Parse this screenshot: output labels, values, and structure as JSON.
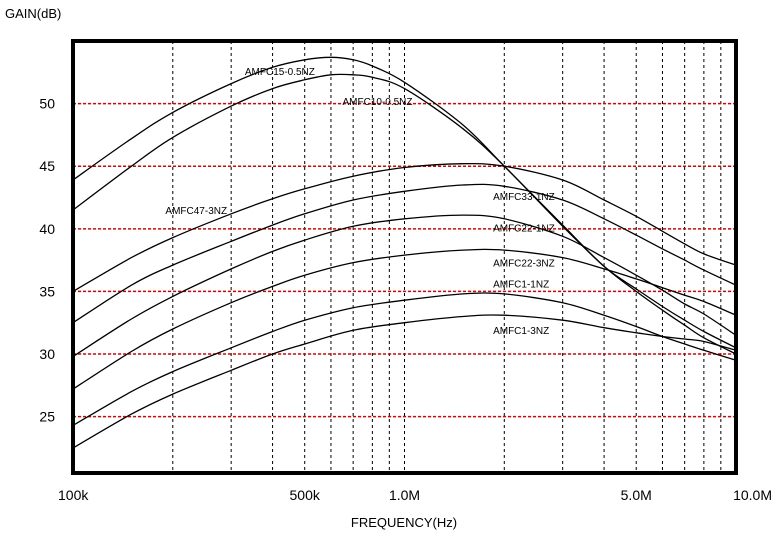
{
  "chart_data": {
    "type": "line",
    "title": "",
    "ylabel": "GAIN(dB)",
    "xlabel": "FREQUENCY(Hz)",
    "x_scale": "log",
    "xlim": [
      100000,
      10000000
    ],
    "ylim": [
      20.5,
      55
    ],
    "grid": "red dashed horizontal, black dashed vertical",
    "x_ticks": [
      {
        "value": 100000,
        "label": "100k"
      },
      {
        "value": 500000,
        "label": "500k"
      },
      {
        "value": 1000000,
        "label": "1.0M"
      },
      {
        "value": 5000000,
        "label": "5.0M"
      },
      {
        "value": 10000000,
        "label": "10.0M"
      }
    ],
    "y_ticks": [
      {
        "value": 25,
        "label": "25"
      },
      {
        "value": 30,
        "label": "30"
      },
      {
        "value": 35,
        "label": "35"
      },
      {
        "value": 40,
        "label": "40"
      },
      {
        "value": 45,
        "label": "45"
      },
      {
        "value": 50,
        "label": "50"
      }
    ],
    "series": [
      {
        "name": "AMFC15-0.5NZ",
        "label_at": [
          330000,
          52.3
        ],
        "points": [
          [
            100000,
            43.9
          ],
          [
            150000,
            47.2
          ],
          [
            200000,
            49.3
          ],
          [
            300000,
            51.6
          ],
          [
            400000,
            52.9
          ],
          [
            500000,
            53.5
          ],
          [
            600000,
            53.7
          ],
          [
            700000,
            53.5
          ],
          [
            800000,
            53
          ],
          [
            1000000,
            51.7
          ],
          [
            1500000,
            48.3
          ],
          [
            2000000,
            45
          ],
          [
            3000000,
            40.3
          ],
          [
            4000000,
            37
          ],
          [
            5000000,
            35.2
          ],
          [
            6000000,
            33.8
          ],
          [
            7000000,
            32.7
          ],
          [
            8000000,
            31.8
          ],
          [
            10000000,
            30.5
          ]
        ]
      },
      {
        "name": "AMFC10-0.5NZ",
        "label_at": [
          650000,
          49.9
        ],
        "points": [
          [
            100000,
            41.5
          ],
          [
            150000,
            45
          ],
          [
            200000,
            47.3
          ],
          [
            300000,
            49.8
          ],
          [
            400000,
            51.2
          ],
          [
            500000,
            51.9
          ],
          [
            600000,
            52.3
          ],
          [
            700000,
            52.3
          ],
          [
            800000,
            52.1
          ],
          [
            1000000,
            51.2
          ],
          [
            1500000,
            48
          ],
          [
            2000000,
            45
          ],
          [
            3000000,
            40.2
          ],
          [
            4000000,
            37
          ],
          [
            5000000,
            35
          ],
          [
            6000000,
            33.5
          ],
          [
            7000000,
            32.3
          ],
          [
            8000000,
            31.3
          ],
          [
            10000000,
            30
          ]
        ]
      },
      {
        "name": "AMFC47-3NZ",
        "label_at": [
          190000,
          41.2
        ],
        "points": [
          [
            100000,
            35
          ],
          [
            150000,
            37.7
          ],
          [
            200000,
            39.3
          ],
          [
            300000,
            41.2
          ],
          [
            400000,
            42.4
          ],
          [
            500000,
            43.2
          ],
          [
            700000,
            44.2
          ],
          [
            1000000,
            44.9
          ],
          [
            1500000,
            45.2
          ],
          [
            2000000,
            45
          ],
          [
            3000000,
            43.9
          ],
          [
            4000000,
            42.3
          ],
          [
            5000000,
            41
          ],
          [
            6000000,
            39.8
          ],
          [
            7000000,
            38.8
          ],
          [
            8000000,
            38
          ],
          [
            10000000,
            37.1
          ]
        ]
      },
      {
        "name": "AMFC33-1NZ",
        "label_at": [
          1850000,
          42.3
        ],
        "points": [
          [
            100000,
            32.5
          ],
          [
            150000,
            35.5
          ],
          [
            200000,
            37.1
          ],
          [
            300000,
            39
          ],
          [
            400000,
            40.3
          ],
          [
            500000,
            41.2
          ],
          [
            700000,
            42.3
          ],
          [
            1000000,
            43
          ],
          [
            1500000,
            43.5
          ],
          [
            2000000,
            43.4
          ],
          [
            3000000,
            42.3
          ],
          [
            4000000,
            40.8
          ],
          [
            5000000,
            39.5
          ],
          [
            6000000,
            38.4
          ],
          [
            7000000,
            37.5
          ],
          [
            8000000,
            36.7
          ],
          [
            10000000,
            35.5
          ]
        ]
      },
      {
        "name": "AMFC22-1NZ",
        "label_at": [
          1850000,
          39.8
        ],
        "points": [
          [
            100000,
            29.8
          ],
          [
            150000,
            32.8
          ],
          [
            200000,
            34.6
          ],
          [
            300000,
            36.8
          ],
          [
            400000,
            38.2
          ],
          [
            500000,
            39.1
          ],
          [
            700000,
            40.2
          ],
          [
            1000000,
            40.8
          ],
          [
            1500000,
            41.1
          ],
          [
            2000000,
            40.8
          ],
          [
            3000000,
            39.4
          ],
          [
            4000000,
            37.7
          ],
          [
            5000000,
            36.3
          ],
          [
            6000000,
            35.1
          ],
          [
            7000000,
            34
          ],
          [
            8000000,
            33.2
          ],
          [
            10000000,
            31.5
          ]
        ]
      },
      {
        "name": "AMFC22-3NZ",
        "label_at": [
          1850000,
          37
        ],
        "points": [
          [
            100000,
            27.2
          ],
          [
            150000,
            30.2
          ],
          [
            200000,
            32
          ],
          [
            300000,
            34.1
          ],
          [
            400000,
            35.4
          ],
          [
            500000,
            36.3
          ],
          [
            700000,
            37.3
          ],
          [
            1000000,
            37.9
          ],
          [
            1500000,
            38.3
          ],
          [
            2000000,
            38.3
          ],
          [
            3000000,
            37.7
          ],
          [
            4000000,
            36.8
          ],
          [
            5000000,
            36
          ],
          [
            6000000,
            35.3
          ],
          [
            7000000,
            34.7
          ],
          [
            8000000,
            34.2
          ],
          [
            10000000,
            33.1
          ]
        ]
      },
      {
        "name": "AMFC1-1NZ",
        "label_at": [
          1850000,
          35.3
        ],
        "points": [
          [
            100000,
            24.3
          ],
          [
            150000,
            27
          ],
          [
            200000,
            28.6
          ],
          [
            300000,
            30.5
          ],
          [
            400000,
            31.8
          ],
          [
            500000,
            32.7
          ],
          [
            700000,
            33.7
          ],
          [
            1000000,
            34.3
          ],
          [
            1500000,
            34.8
          ],
          [
            2000000,
            34.8
          ],
          [
            3000000,
            34.1
          ],
          [
            4000000,
            33.1
          ],
          [
            5000000,
            32.2
          ],
          [
            6000000,
            31.4
          ],
          [
            7000000,
            30.8
          ],
          [
            8000000,
            30.3
          ],
          [
            10000000,
            29.5
          ]
        ]
      },
      {
        "name": "AMFC1-3NZ",
        "label_at": [
          1850000,
          31.6
        ],
        "points": [
          [
            100000,
            22.5
          ],
          [
            150000,
            25.2
          ],
          [
            200000,
            26.8
          ],
          [
            300000,
            28.7
          ],
          [
            400000,
            30
          ],
          [
            500000,
            30.8
          ],
          [
            700000,
            31.9
          ],
          [
            1000000,
            32.5
          ],
          [
            1500000,
            33
          ],
          [
            2000000,
            33.1
          ],
          [
            3000000,
            32.7
          ],
          [
            4000000,
            32.1
          ],
          [
            5000000,
            31.7
          ],
          [
            6000000,
            31.4
          ],
          [
            7000000,
            31.2
          ],
          [
            8000000,
            31
          ],
          [
            10000000,
            30.3
          ]
        ]
      }
    ]
  }
}
